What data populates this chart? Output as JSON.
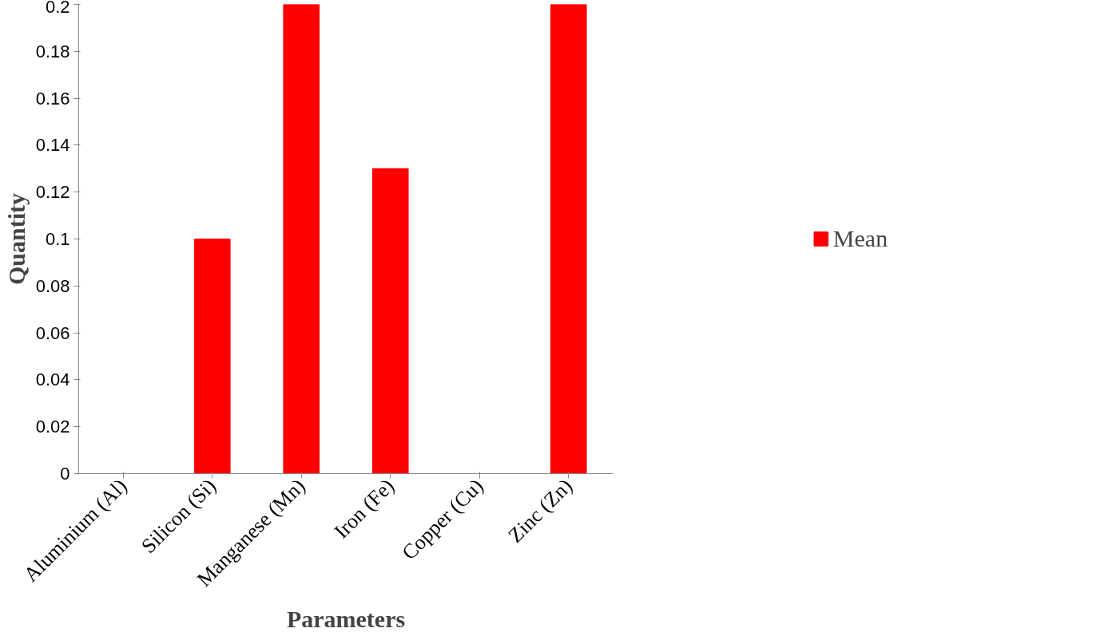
{
  "chart_data": {
    "type": "bar",
    "xlabel": "Parameters",
    "ylabel": "Quantity",
    "categories": [
      "Aluminium (Al)",
      "Silicon (Si)",
      "Manganese (Mn)",
      "Iron (Fe)",
      "Copper (Cu)",
      "Zinc (Zn)"
    ],
    "series": [
      {
        "name": "Mean",
        "color": "#ff0000",
        "values": [
          0,
          0.1,
          0.2,
          0.13,
          0,
          0.2
        ]
      }
    ],
    "ylim": [
      0,
      0.2
    ],
    "yticks": [
      0,
      0.02,
      0.04,
      0.06,
      0.08,
      0.1,
      0.12,
      0.14,
      0.16,
      0.18,
      0.2
    ],
    "grid": false,
    "legend": "right"
  }
}
